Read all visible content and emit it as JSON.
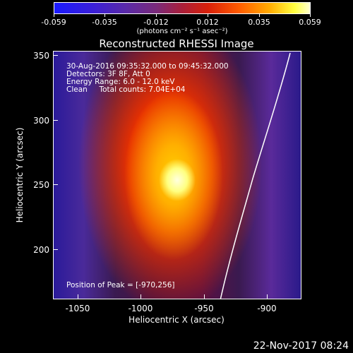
{
  "colorbar": {
    "tick_labels": [
      "-0.059",
      "-0.035",
      "-0.012",
      "0.012",
      "0.035",
      "0.059"
    ],
    "units": "(photons cm⁻² s⁻¹ asec⁻²)"
  },
  "title": "Reconstructed RHESSI Image",
  "info": {
    "line1": "30-Aug-2016 09:35:32.000 to 09:45:32.000",
    "line2": "Detectors: 3F 8F, Att 0",
    "line3": "Energy Range: 6.0 - 12.0 keV",
    "line4": "Clean     Total counts: 7.04E+04",
    "peak": "Position of Peak = [-970,256]"
  },
  "x_axis": {
    "label": "Heliocentric X (arcsec)",
    "ticks": [
      "-1050",
      "-1000",
      "-950",
      "-900"
    ]
  },
  "y_axis": {
    "label": "Heliocentric Y (arcsec)",
    "ticks": [
      "350",
      "300",
      "250",
      "200"
    ]
  },
  "footer_date": "22-Nov-2017 08:24"
}
